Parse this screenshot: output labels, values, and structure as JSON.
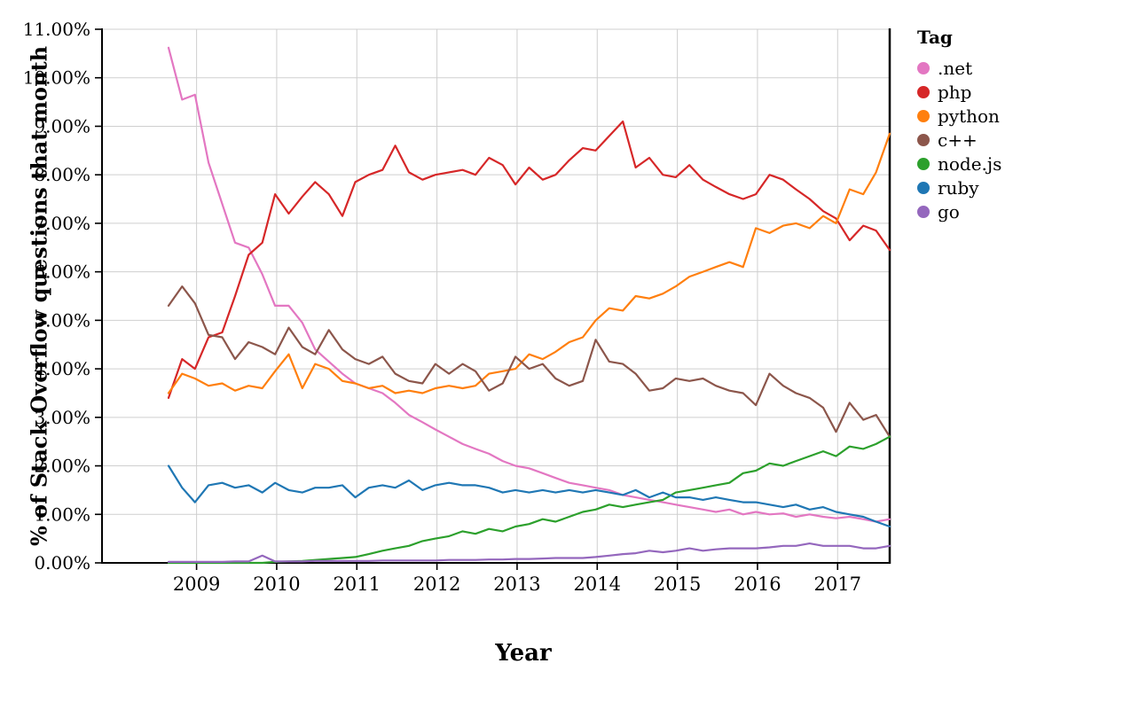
{
  "page": {
    "background": "#ffffff"
  },
  "chart_data": {
    "type": "line",
    "title": "",
    "xlabel": "Year",
    "ylabel": "% of Stack Overflow questions that month",
    "legend_title": "Tag",
    "legend_position": "right",
    "grid": true,
    "xlim": [
      2007.82,
      2017.65
    ],
    "ylim": [
      0,
      11
    ],
    "x_ticks": [
      2009,
      2010,
      2011,
      2012,
      2013,
      2014,
      2015,
      2016,
      2017
    ],
    "x_tick_labels": [
      "2009",
      "2010",
      "2011",
      "2012",
      "2013",
      "2014",
      "2015",
      "2016",
      "2017"
    ],
    "y_ticks": [
      0,
      1,
      2,
      3,
      4,
      5,
      6,
      7,
      8,
      9,
      10,
      11
    ],
    "y_tick_labels": [
      "0.00%",
      "1.00%",
      "2.00%",
      "3.00%",
      "4.00%",
      "5.00%",
      "6.00%",
      "7.00%",
      "8.00%",
      "9.00%",
      "10.00%",
      "11.00%"
    ],
    "x": [
      2008.65,
      2008.82,
      2008.98,
      2009.15,
      2009.32,
      2009.48,
      2009.65,
      2009.82,
      2009.98,
      2010.15,
      2010.32,
      2010.48,
      2010.65,
      2010.82,
      2010.98,
      2011.15,
      2011.32,
      2011.48,
      2011.65,
      2011.82,
      2011.98,
      2012.15,
      2012.32,
      2012.48,
      2012.65,
      2012.82,
      2012.98,
      2013.15,
      2013.32,
      2013.48,
      2013.65,
      2013.82,
      2013.98,
      2014.15,
      2014.32,
      2014.48,
      2014.65,
      2014.82,
      2014.98,
      2015.15,
      2015.32,
      2015.48,
      2015.65,
      2015.82,
      2015.98,
      2016.15,
      2016.32,
      2016.48,
      2016.65,
      2016.82,
      2016.98,
      2017.15,
      2017.32,
      2017.48,
      2017.65
    ],
    "series": [
      {
        "name": ".net",
        "color": "#e377c2",
        "values": [
          10.62,
          9.55,
          9.65,
          8.25,
          7.4,
          6.6,
          6.5,
          5.95,
          5.3,
          5.3,
          4.95,
          4.4,
          4.15,
          3.9,
          3.7,
          3.6,
          3.5,
          3.3,
          3.05,
          2.9,
          2.75,
          2.6,
          2.45,
          2.35,
          2.25,
          2.1,
          2.0,
          1.95,
          1.85,
          1.75,
          1.65,
          1.6,
          1.55,
          1.5,
          1.4,
          1.35,
          1.3,
          1.25,
          1.2,
          1.15,
          1.1,
          1.05,
          1.1,
          1.0,
          1.05,
          1.0,
          1.02,
          0.95,
          1.0,
          0.95,
          0.92,
          0.95,
          0.9,
          0.85,
          0.9
        ]
      },
      {
        "name": "php",
        "color": "#d62728",
        "values": [
          3.4,
          4.2,
          4.0,
          4.65,
          4.75,
          5.5,
          6.35,
          6.6,
          7.6,
          7.2,
          7.55,
          7.85,
          7.6,
          7.15,
          7.85,
          8.0,
          8.1,
          8.6,
          8.05,
          7.9,
          8.0,
          8.05,
          8.1,
          8.0,
          8.35,
          8.2,
          7.8,
          8.15,
          7.9,
          8.0,
          8.3,
          8.55,
          8.5,
          8.8,
          9.1,
          8.15,
          8.35,
          8.0,
          7.95,
          8.2,
          7.9,
          7.75,
          7.6,
          7.5,
          7.6,
          8.0,
          7.9,
          7.7,
          7.5,
          7.25,
          7.1,
          6.65,
          6.95,
          6.85,
          6.45
        ]
      },
      {
        "name": "python",
        "color": "#ff7f0e",
        "values": [
          3.5,
          3.9,
          3.8,
          3.65,
          3.7,
          3.55,
          3.65,
          3.6,
          3.95,
          4.3,
          3.6,
          4.1,
          4.0,
          3.75,
          3.7,
          3.6,
          3.65,
          3.5,
          3.55,
          3.5,
          3.6,
          3.65,
          3.6,
          3.65,
          3.9,
          3.95,
          4.0,
          4.3,
          4.2,
          4.35,
          4.55,
          4.65,
          5.0,
          5.25,
          5.2,
          5.5,
          5.45,
          5.55,
          5.7,
          5.9,
          6.0,
          6.1,
          6.2,
          6.1,
          6.9,
          6.8,
          6.95,
          7.0,
          6.9,
          7.15,
          7.0,
          7.7,
          7.6,
          8.05,
          8.85
        ]
      },
      {
        "name": "c++",
        "color": "#8c564b",
        "values": [
          5.3,
          5.7,
          5.35,
          4.7,
          4.65,
          4.2,
          4.55,
          4.45,
          4.3,
          4.85,
          4.45,
          4.3,
          4.8,
          4.4,
          4.2,
          4.1,
          4.25,
          3.9,
          3.75,
          3.7,
          4.1,
          3.9,
          4.1,
          3.95,
          3.55,
          3.7,
          4.25,
          4.0,
          4.1,
          3.8,
          3.65,
          3.75,
          4.6,
          4.15,
          4.1,
          3.9,
          3.55,
          3.6,
          3.8,
          3.75,
          3.8,
          3.65,
          3.55,
          3.5,
          3.25,
          3.9,
          3.65,
          3.5,
          3.4,
          3.2,
          2.7,
          3.3,
          2.95,
          3.05,
          2.6
        ]
      },
      {
        "name": "node.js",
        "color": "#2ca02c",
        "values": [
          0.0,
          0.0,
          0.0,
          0.0,
          0.0,
          0.0,
          0.0,
          0.0,
          0.02,
          0.03,
          0.04,
          0.06,
          0.08,
          0.1,
          0.12,
          0.18,
          0.25,
          0.3,
          0.35,
          0.45,
          0.5,
          0.55,
          0.65,
          0.6,
          0.7,
          0.65,
          0.75,
          0.8,
          0.9,
          0.85,
          0.95,
          1.05,
          1.1,
          1.2,
          1.15,
          1.2,
          1.25,
          1.3,
          1.45,
          1.5,
          1.55,
          1.6,
          1.65,
          1.85,
          1.9,
          2.05,
          2.0,
          2.1,
          2.2,
          2.3,
          2.2,
          2.4,
          2.35,
          2.45,
          2.6
        ]
      },
      {
        "name": "ruby",
        "color": "#1f77b4",
        "values": [
          2.0,
          1.55,
          1.25,
          1.6,
          1.65,
          1.55,
          1.6,
          1.45,
          1.65,
          1.5,
          1.45,
          1.55,
          1.55,
          1.6,
          1.35,
          1.55,
          1.6,
          1.55,
          1.7,
          1.5,
          1.6,
          1.65,
          1.6,
          1.6,
          1.55,
          1.45,
          1.5,
          1.45,
          1.5,
          1.45,
          1.5,
          1.45,
          1.5,
          1.45,
          1.4,
          1.5,
          1.35,
          1.45,
          1.35,
          1.35,
          1.3,
          1.35,
          1.3,
          1.25,
          1.25,
          1.2,
          1.15,
          1.2,
          1.1,
          1.15,
          1.05,
          1.0,
          0.95,
          0.85,
          0.75
        ]
      },
      {
        "name": "go",
        "color": "#9467bd",
        "values": [
          0.02,
          0.02,
          0.02,
          0.02,
          0.02,
          0.03,
          0.03,
          0.15,
          0.03,
          0.03,
          0.03,
          0.04,
          0.04,
          0.04,
          0.04,
          0.04,
          0.05,
          0.05,
          0.05,
          0.05,
          0.05,
          0.06,
          0.06,
          0.06,
          0.07,
          0.07,
          0.08,
          0.08,
          0.09,
          0.1,
          0.1,
          0.1,
          0.12,
          0.15,
          0.18,
          0.2,
          0.25,
          0.22,
          0.25,
          0.3,
          0.25,
          0.28,
          0.3,
          0.3,
          0.3,
          0.32,
          0.35,
          0.35,
          0.4,
          0.35,
          0.35,
          0.35,
          0.3,
          0.3,
          0.35
        ]
      }
    ],
    "colors": {
      "grid": "#cfcfcf",
      "axis": "#000000",
      "text": "#000000"
    }
  }
}
